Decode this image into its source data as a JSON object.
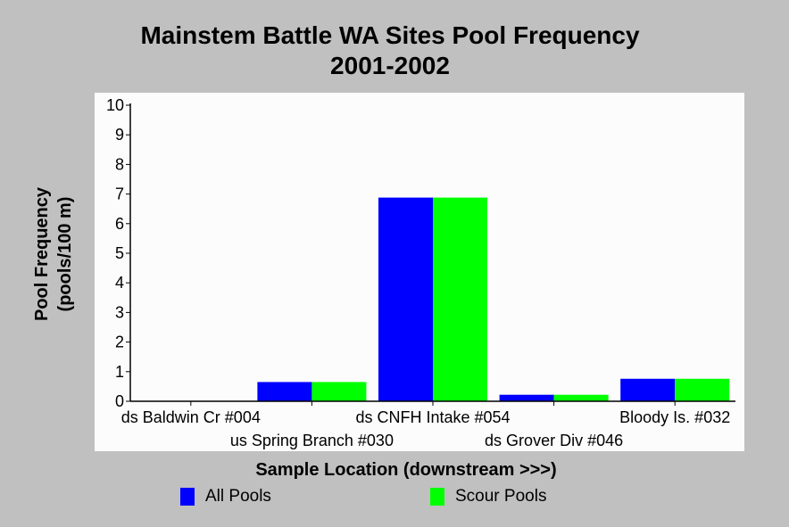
{
  "chart_data": {
    "type": "bar",
    "title": "Mainstem Battle WA Sites Pool Frequency",
    "subtitle": "2001-2002",
    "xlabel": "Sample Location (downstream >>>)",
    "ylabel_line1": "Pool Frequency",
    "ylabel_line2": "(pools/100 m)",
    "ylim": [
      0,
      10
    ],
    "yticks": [
      "0",
      "1",
      "2",
      "3",
      "4",
      "5",
      "6",
      "7",
      "8",
      "9",
      "10"
    ],
    "categories": [
      "ds Baldwin Cr #004",
      "us Spring Branch #030",
      "ds CNFH Intake #054",
      "ds Grover Div #046",
      "Bloody Is. #032"
    ],
    "series": [
      {
        "name": "All Pools",
        "color": "#0000ff",
        "values": [
          0,
          0.65,
          6.88,
          0.22,
          0.76
        ]
      },
      {
        "name": "Scour Pools",
        "color": "#00ff00",
        "values": [
          0,
          0.65,
          6.88,
          0.22,
          0.76
        ]
      }
    ],
    "grid": false,
    "legend_position": "bottom"
  }
}
